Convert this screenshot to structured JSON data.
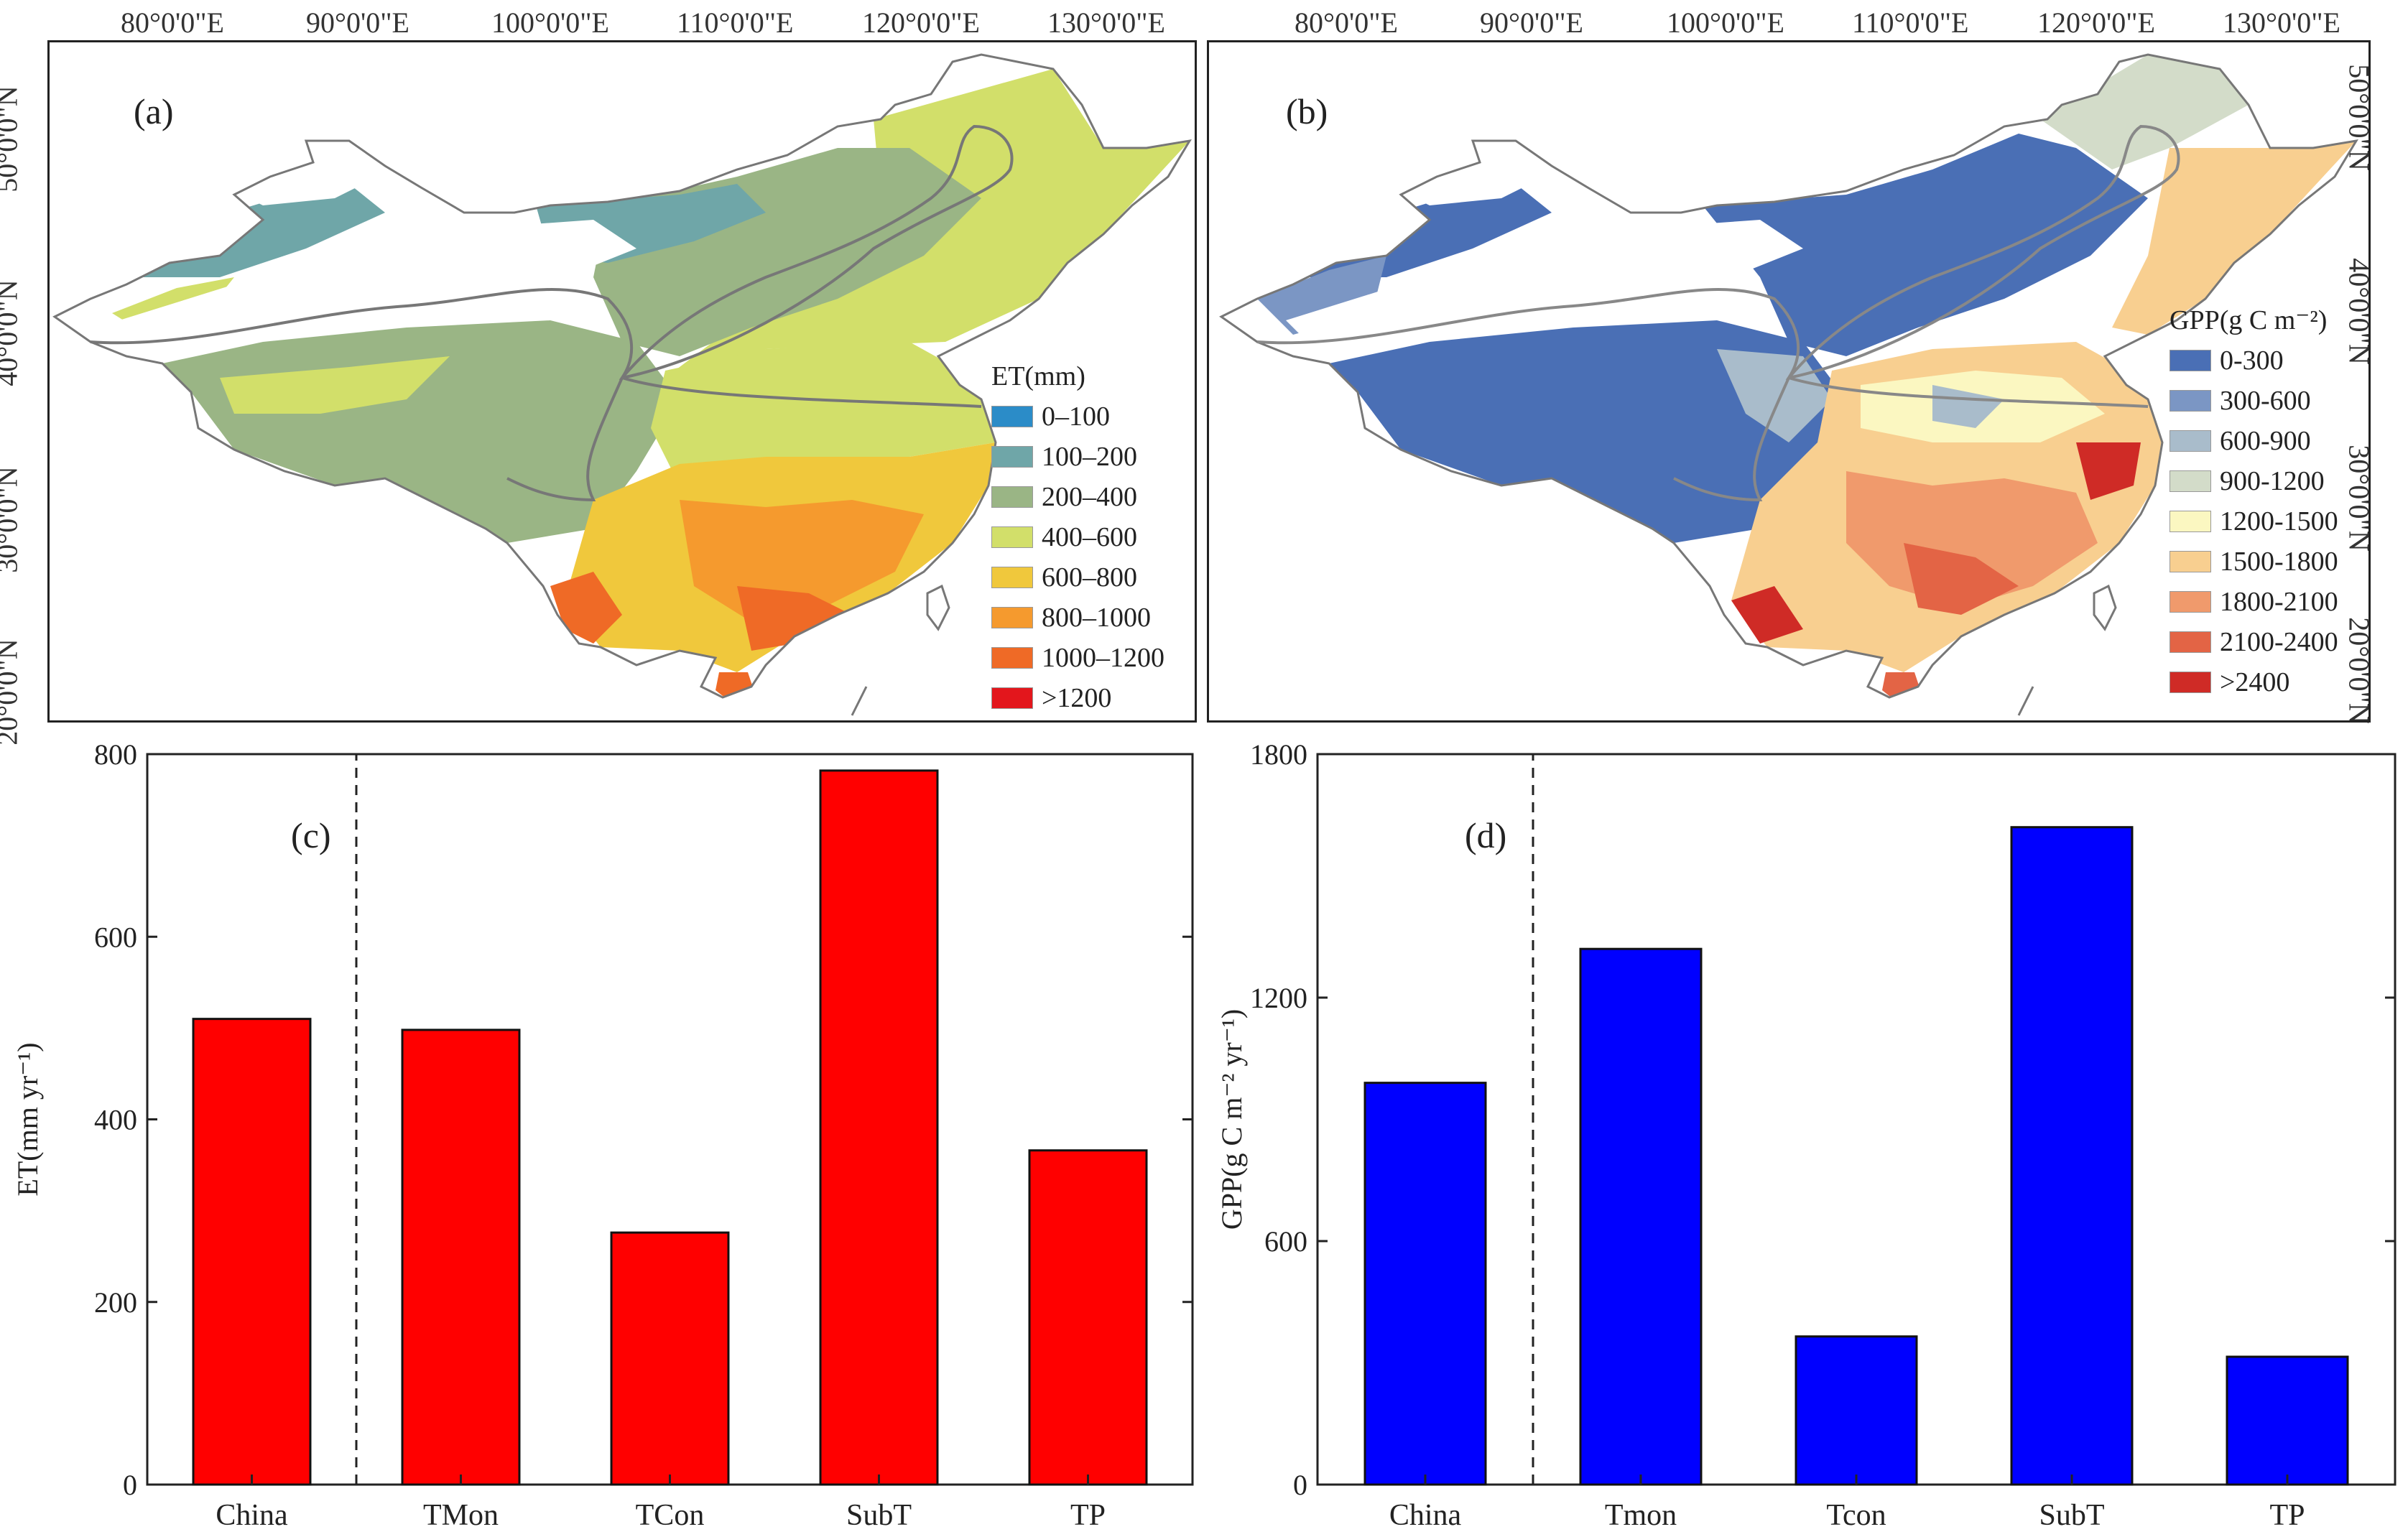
{
  "maps": [
    {
      "id": "a",
      "panel_label": "(a)",
      "legend_title": "ET(mm)",
      "legend": [
        {
          "label": "0–100",
          "color": "#2b8cc8"
        },
        {
          "label": "100–200",
          "color": "#6fa6a8"
        },
        {
          "label": "200–400",
          "color": "#9ab585"
        },
        {
          "label": "400–600",
          "color": "#d2df6a"
        },
        {
          "label": "600–800",
          "color": "#f0c83c"
        },
        {
          "label": "800–1000",
          "color": "#f59a2e"
        },
        {
          "label": "1000–1200",
          "color": "#ef6a26"
        },
        {
          "label": ">1200",
          "color": "#e3161c"
        }
      ],
      "lon_labels": [
        "80°0'0\"E",
        "90°0'0\"E",
        "100°0'0\"E",
        "110°0'0\"E",
        "120°0'0\"E",
        "130°0'0\"E"
      ],
      "lat_labels": [
        "50°0'0\"N",
        "40°0'0\"N",
        "30°0'0\"N",
        "20°0'0\"N"
      ]
    },
    {
      "id": "b",
      "panel_label": "(b)",
      "legend_title": "GPP(g C m⁻²)",
      "legend": [
        {
          "label": "0-300",
          "color": "#4a6fb5"
        },
        {
          "label": "300-600",
          "color": "#7b96c4"
        },
        {
          "label": "600-900",
          "color": "#a9bccb"
        },
        {
          "label": "900-1200",
          "color": "#d3dcc9"
        },
        {
          "label": "1200-1500",
          "color": "#fbf7c1"
        },
        {
          "label": "1500-1800",
          "color": "#f8cf90"
        },
        {
          "label": "1800-2100",
          "color": "#f09a6c"
        },
        {
          "label": "2100-2400",
          "color": "#e36445"
        },
        {
          "label": ">2400",
          "color": "#cf2b26"
        }
      ],
      "lon_labels": [
        "80°0'0\"E",
        "90°0'0\"E",
        "100°0'0\"E",
        "110°0'0\"E",
        "120°0'0\"E",
        "130°0'0\"E"
      ],
      "lat_labels": [
        "50°0'0\"N",
        "40°0'0\"N",
        "30°0'0\"N",
        "20°0'0\"N"
      ]
    }
  ],
  "chart_data": [
    {
      "type": "bar",
      "panel_label": "(c)",
      "categories": [
        "China",
        "TMon",
        "TCon",
        "SubT",
        "TP"
      ],
      "values": [
        510,
        498,
        276,
        782,
        366
      ],
      "color": "#ff0000",
      "ylabel": "ET(mm yr⁻¹)",
      "ylim": [
        0,
        800
      ],
      "yticks": [
        0,
        200,
        400,
        600,
        800
      ],
      "ytick_labels": [
        "0",
        "200",
        "400",
        "600",
        "800"
      ]
    },
    {
      "type": "bar",
      "panel_label": "(d)",
      "categories": [
        "China",
        "Tmon",
        "Tcon",
        "SubT",
        "TP"
      ],
      "values": [
        990,
        1320,
        365,
        1620,
        315
      ],
      "color": "#0000ff",
      "ylabel": "GPP(g C m⁻² yr⁻¹)",
      "ylim": [
        0,
        1800
      ],
      "yticks": [
        0,
        600,
        1200,
        1800
      ],
      "ytick_labels": [
        "0",
        "600",
        "1200",
        "1800"
      ]
    }
  ]
}
